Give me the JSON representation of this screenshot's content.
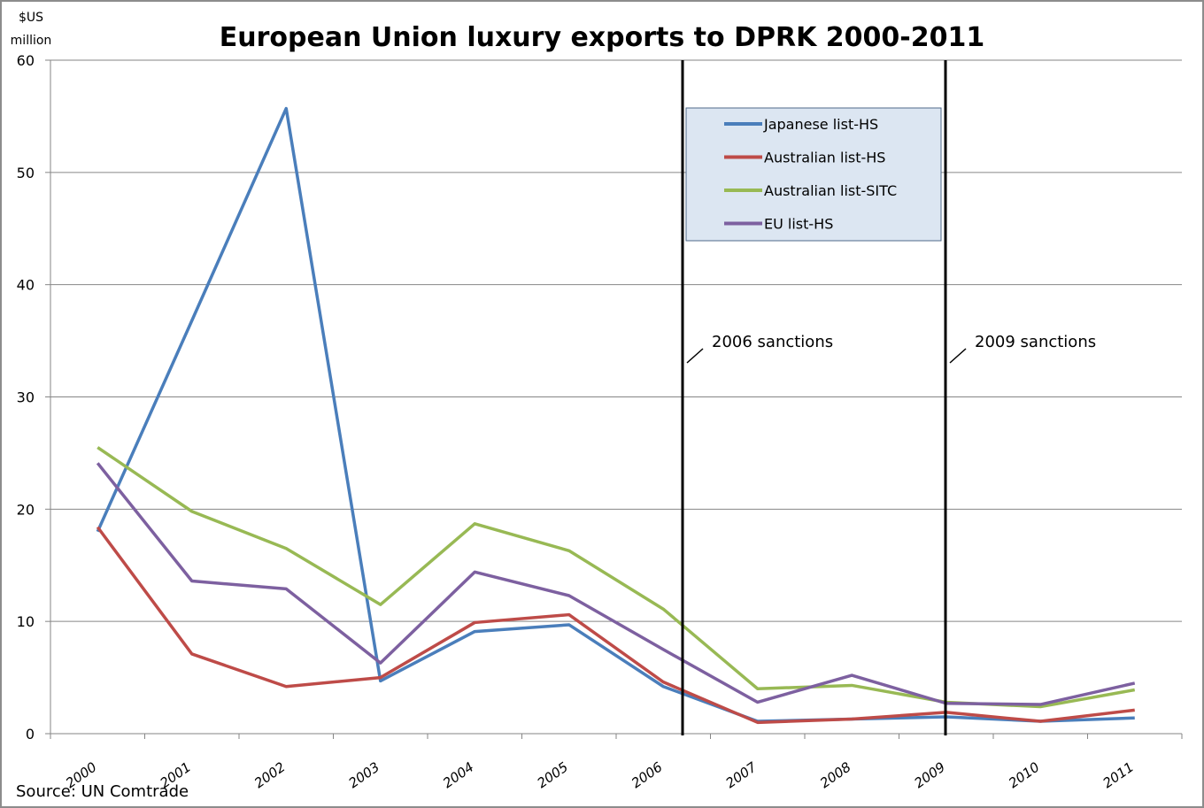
{
  "chart_data": {
    "type": "line",
    "title": "European Union luxury exports to DPRK 2000-2011",
    "ylabel": "$US million",
    "xlabel": "",
    "ylim": [
      0,
      60
    ],
    "yticks": [
      0,
      10,
      20,
      30,
      40,
      50,
      60
    ],
    "grid": true,
    "legend_position": "top-right (inside plot)",
    "categories": [
      "2000",
      "2001",
      "2002",
      "2003",
      "2004",
      "2005",
      "2006",
      "2007",
      "2008",
      "2009",
      "2010",
      "2011"
    ],
    "series": [
      {
        "name": "Japanese list-HS",
        "color": "#4a7ebb",
        "values": [
          18.0,
          36.8,
          55.7,
          4.7,
          9.1,
          9.7,
          4.2,
          1.1,
          1.3,
          1.5,
          1.1,
          1.4
        ]
      },
      {
        "name": "Australian list-HS",
        "color": "#be4b48",
        "values": [
          18.4,
          7.1,
          4.2,
          5.0,
          9.9,
          10.6,
          4.6,
          1.0,
          1.3,
          1.9,
          1.1,
          2.1
        ]
      },
      {
        "name": "Australian list-SITC",
        "color": "#98b954",
        "values": [
          25.5,
          19.8,
          16.5,
          11.5,
          18.7,
          16.3,
          11.1,
          4.0,
          4.3,
          2.8,
          2.4,
          3.9
        ]
      },
      {
        "name": "EU list-HS",
        "color": "#7d60a0",
        "values": [
          24.1,
          13.6,
          12.9,
          6.3,
          14.4,
          12.3,
          7.5,
          2.8,
          5.2,
          2.7,
          2.6,
          4.5
        ]
      }
    ],
    "annotations": [
      {
        "label": "2006 sanctions",
        "between": [
          "2006",
          "2007"
        ]
      },
      {
        "label": "2009 sanctions",
        "at": "2009"
      }
    ],
    "source": "Source: UN Comtrade"
  }
}
